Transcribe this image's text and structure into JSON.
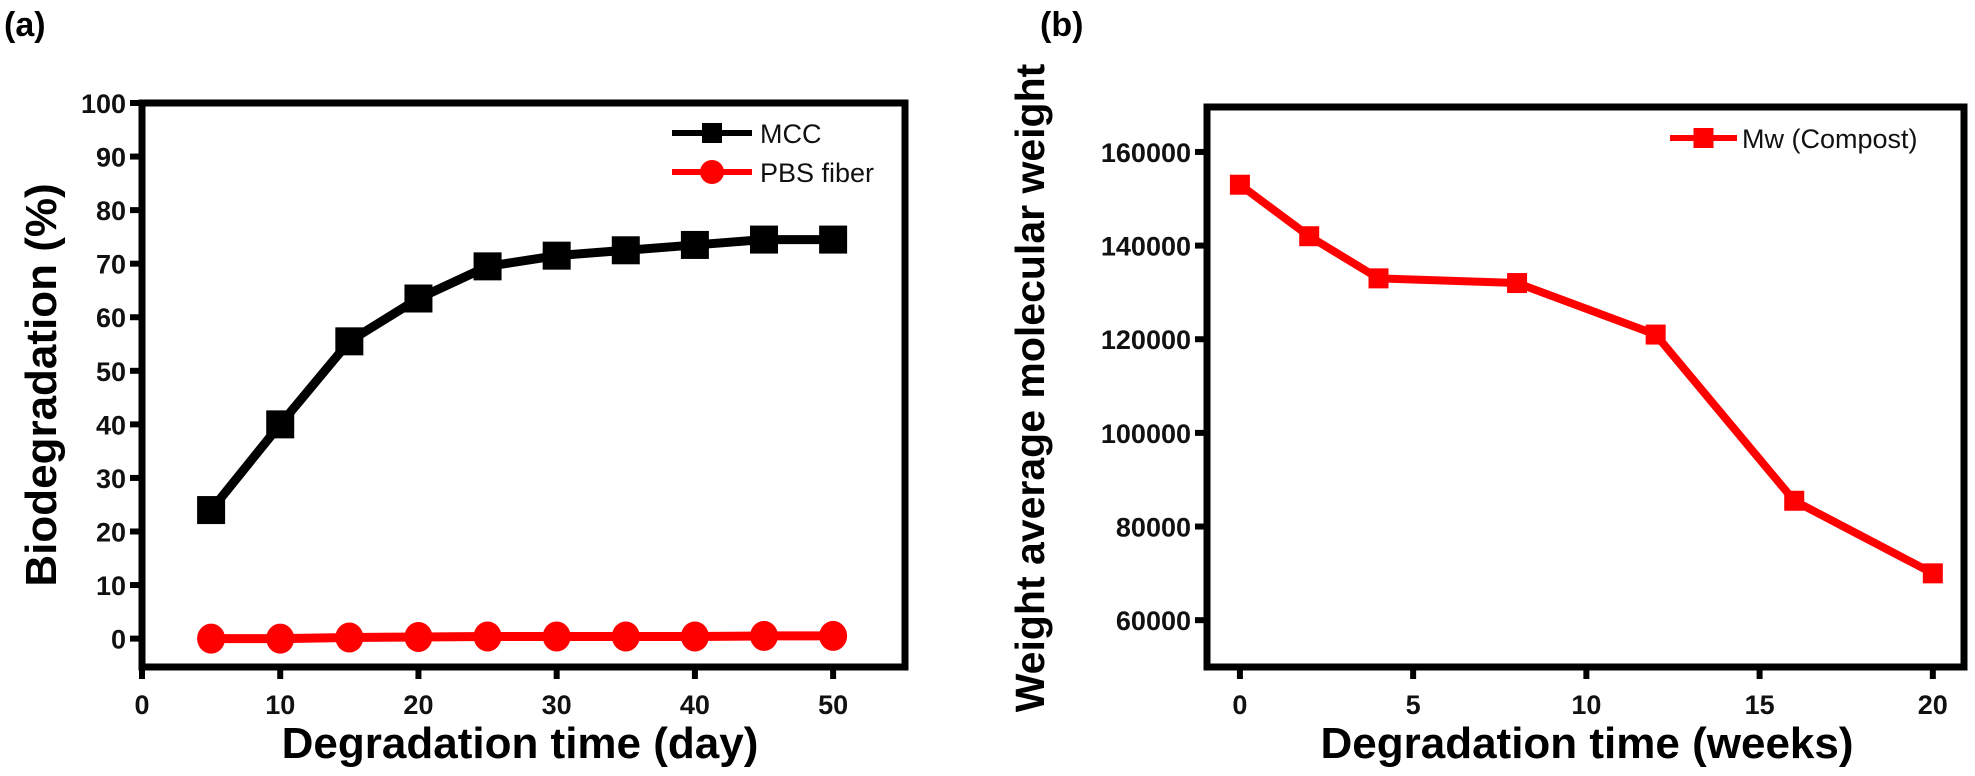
{
  "chart_data": [
    {
      "panel_label": "(a)",
      "type": "line",
      "xlabel": "Degradation time (day)",
      "ylabel": "Biodegradation (%)",
      "xlim": [
        0,
        55.2
      ],
      "ylim": [
        -5.3,
        100
      ],
      "xticks": [
        0,
        10,
        20,
        30,
        40,
        50
      ],
      "yticks": [
        0,
        10,
        20,
        30,
        40,
        50,
        60,
        70,
        80,
        90,
        100
      ],
      "grid": false,
      "legend_position": "top-right",
      "x": [
        5,
        10,
        15,
        20,
        25,
        30,
        35,
        40,
        45,
        50
      ],
      "series": [
        {
          "name": "MCC",
          "marker": "square",
          "color": "#000000",
          "values": [
            24,
            40,
            55.5,
            63.5,
            69.5,
            71.5,
            72.5,
            73.5,
            74.5,
            74.5
          ]
        },
        {
          "name": "PBS fiber",
          "marker": "circle",
          "color": "#ff0000",
          "values": [
            0,
            0,
            0.2,
            0.3,
            0.4,
            0.4,
            0.4,
            0.4,
            0.5,
            0.5
          ]
        }
      ]
    },
    {
      "panel_label": "(b)",
      "type": "line",
      "xlabel": "Degradation time (weeks)",
      "ylabel": "Weight average molecular weight",
      "xlim": [
        -0.95,
        20.9
      ],
      "ylim": [
        50000,
        169600
      ],
      "xticks": [
        0,
        5,
        10,
        15,
        20
      ],
      "yticks": [
        60000,
        80000,
        100000,
        120000,
        140000,
        160000
      ],
      "grid": false,
      "legend_position": "top-right",
      "x": [
        0,
        2,
        4,
        8,
        12,
        16,
        20
      ],
      "series": [
        {
          "name": "Mw (Compost)",
          "marker": "square",
          "color": "#ff0000",
          "values": [
            153000,
            142000,
            133000,
            132000,
            121000,
            85500,
            70000
          ]
        }
      ]
    }
  ]
}
